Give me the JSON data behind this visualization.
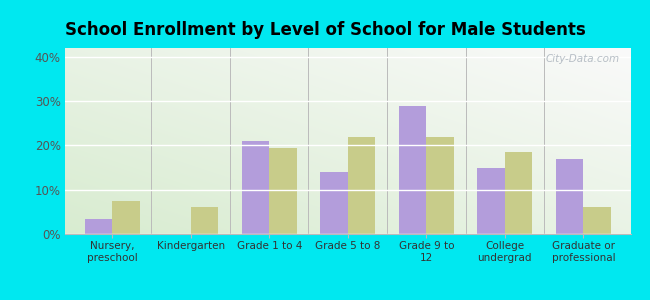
{
  "title": "School Enrollment by Level of School for Male Students",
  "categories": [
    "Nursery,\npreschool",
    "Kindergarten",
    "Grade 1 to 4",
    "Grade 5 to 8",
    "Grade 9 to\n12",
    "College\nundergrad",
    "Graduate or\nprofessional"
  ],
  "hi_nella": [
    3.5,
    0,
    21,
    14,
    29,
    15,
    17
  ],
  "new_jersey": [
    7.5,
    6,
    19.5,
    22,
    22,
    18.5,
    6
  ],
  "color_hi_nella": "#b39ddb",
  "color_new_jersey": "#c8cc8a",
  "background_outer": "#00e8f0",
  "ylim": [
    0,
    42
  ],
  "yticks": [
    0,
    10,
    20,
    30,
    40
  ],
  "ytick_labels": [
    "0%",
    "10%",
    "20%",
    "30%",
    "40%"
  ],
  "bar_width": 0.35,
  "title_fontsize": 12
}
